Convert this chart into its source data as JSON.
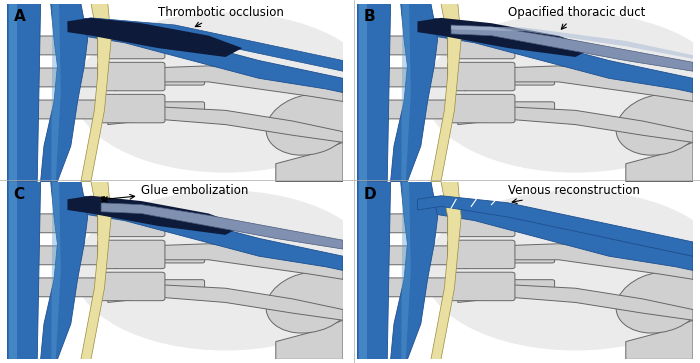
{
  "bg_color": "#ffffff",
  "body_bg": "#f2f2f2",
  "bone_fill": "#d0d0d0",
  "bone_edge": "#666666",
  "blue_dark": "#1e4f8f",
  "blue_mid": "#2e6db4",
  "blue_light": "#4a90d9",
  "blue_grad_top": "#a8c8f0",
  "dark_navy": "#0d1a3a",
  "yellow_fill": "#e8dfa0",
  "yellow_edge": "#9a8a40",
  "gray_opac": "#8090b0",
  "panel_labels": [
    "A",
    "B",
    "C",
    "D"
  ],
  "annotations": {
    "A": "Thrombotic occlusion",
    "B": "Opacified thoracic duct",
    "C": "Glue embolization",
    "D": "Venous reconstruction"
  },
  "label_fs": 11,
  "annot_fs": 8.5
}
